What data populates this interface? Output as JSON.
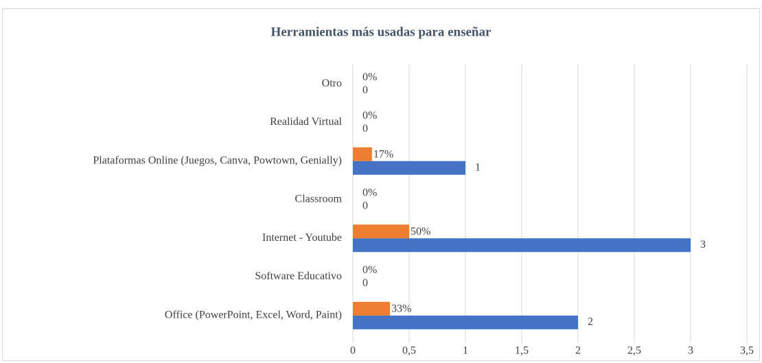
{
  "chart_data": {
    "type": "bar",
    "orientation": "horizontal",
    "title": "Herramientas más usadas para enseñar",
    "categories": [
      "Office (PowerPoint, Excel, Word, Paint)",
      "Software Educativo",
      "Internet - Youtube",
      "Classroom",
      "Plataformas Online (Juegos, Canva, Powtown, Genially)",
      "Realidad Virtual",
      "Otro"
    ],
    "series": [
      {
        "color": "#4472c4",
        "values": [
          2,
          0,
          3,
          0,
          1,
          0,
          0
        ]
      },
      {
        "color": "#ed7d31",
        "values": [
          0.33,
          0,
          0.5,
          0,
          0.17,
          0,
          0
        ],
        "value_labels": [
          "33%",
          "0%",
          "50%",
          "0%",
          "17%",
          "0%",
          "0%"
        ]
      }
    ],
    "xlim": [
      0,
      3.5
    ],
    "xticks": [
      0,
      {
        "value": 0.5,
        "label": "0,5"
      },
      1,
      {
        "value": 1.5,
        "label": "1,5"
      },
      2,
      {
        "value": 2.5,
        "label": "2,5"
      },
      3,
      {
        "value": 3.5,
        "label": "3,5"
      }
    ],
    "grid": true
  }
}
